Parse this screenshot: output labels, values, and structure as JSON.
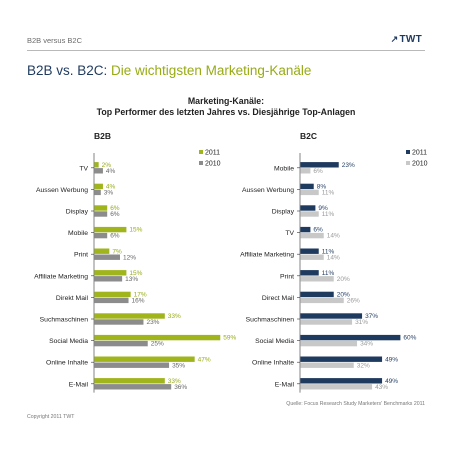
{
  "header": {
    "kicker": "B2B versus B2C",
    "logo": "TWT",
    "title_part1": "B2B vs. B2C:",
    "title_part2": " Die wichtigsten Marketing-Kanäle"
  },
  "chart_title_line1": "Marketing-Kanäle:",
  "chart_title_line2": "Top Performer des letzten Jahres vs. Diesjährige Top-Anlagen",
  "source": "Quelle: Focus Research Study Marketers' Benchmarks 2011",
  "copyright": "Copyright 2011 TWT",
  "colors": {
    "b2b_2011": "#a0b41c",
    "b2b_2010": "#8c8c8c",
    "b2c_2011": "#1f3a5f",
    "b2c_2010": "#c8c8c8"
  },
  "chart_data": [
    {
      "type": "bar",
      "orientation": "horizontal",
      "title": "B2B",
      "categories": [
        "TV",
        "Aussen Werbung",
        "Display",
        "Mobile",
        "Print",
        "Affiliate Marketing",
        "Direkt Mail",
        "Suchmaschinen",
        "Social Media",
        "Online Inhalte",
        "E-Mail"
      ],
      "series": [
        {
          "name": "2011",
          "values": [
            2,
            4,
            6,
            15,
            7,
            15,
            17,
            33,
            59,
            47,
            33
          ]
        },
        {
          "name": "2010",
          "values": [
            4,
            3,
            6,
            6,
            12,
            13,
            16,
            23,
            25,
            35,
            36
          ]
        }
      ],
      "value_suffix": "%",
      "xlim": [
        0,
        60
      ],
      "legend": "top-right",
      "grid": false
    },
    {
      "type": "bar",
      "orientation": "horizontal",
      "title": "B2C",
      "categories": [
        "Mobile",
        "Aussen Werbung",
        "Display",
        "TV",
        "Affiliate Marketing",
        "Print",
        "Direct Mail",
        "Suchmaschinen",
        "Social Media",
        "Online Inhalte",
        "E-Mail"
      ],
      "series": [
        {
          "name": "2011",
          "values": [
            23,
            8,
            9,
            6,
            11,
            11,
            20,
            37,
            60,
            49,
            49
          ]
        },
        {
          "name": "2010",
          "values": [
            6,
            11,
            11,
            14,
            14,
            20,
            26,
            31,
            34,
            32,
            43
          ]
        }
      ],
      "value_suffix": "%",
      "xlim": [
        0,
        60
      ],
      "legend": "top-right",
      "grid": false
    }
  ]
}
